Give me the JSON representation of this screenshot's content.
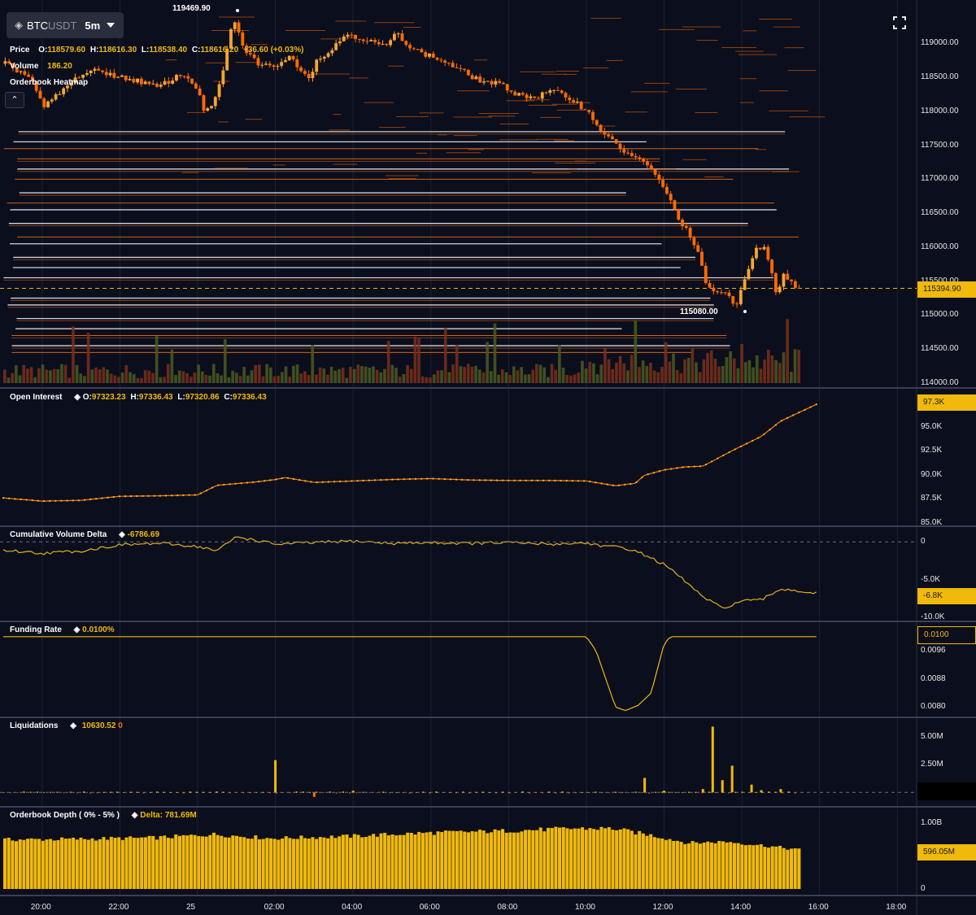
{
  "symbol": {
    "base": "BTC",
    "quote": "USDT",
    "timeframe": "5m"
  },
  "price_panel": {
    "label": "Price",
    "open_label": "O:",
    "open": "118579.60",
    "high_label": "H:",
    "high": "118616.30",
    "low_label": "L:",
    "low": "118538.40",
    "close_label": "C:",
    "close": "118616.20",
    "change": "+36.60 (+0.03%)",
    "volume_label": "Volume",
    "volume": "186.20",
    "heatmap_label": "Orderbook Heatmap",
    "high_marker": "119469.90",
    "low_marker": "115080.00",
    "last_price": "115394.90"
  },
  "open_interest": {
    "label": "Open Interest",
    "open_label": "O:",
    "open": "97323.23",
    "high_label": "H:",
    "high": "97336.43",
    "low_label": "L:",
    "low": "97320.86",
    "close_label": "C:",
    "close": "97336.43",
    "last": "97.3K"
  },
  "cvd": {
    "label": "Cumulative Volume Delta",
    "value": "-6786.69",
    "last": "-6.8K"
  },
  "funding": {
    "label": "Funding Rate",
    "value": "0.0100%",
    "last": "0.0100"
  },
  "liquidations": {
    "label": "Liquidations",
    "value1": "10630.52",
    "value2": "0"
  },
  "depth": {
    "label": "Orderbook Depth ( 0% - 5% )",
    "delta_label": "Delta: 781.69M",
    "last": "596.05M"
  },
  "colors": {
    "background": "#0b0e1c",
    "accent": "#f0b90b",
    "candle": "#ff8c1a",
    "grid": "#1c2233",
    "dashed": "#f0b90b"
  },
  "chart_data": [
    {
      "type": "candlestick",
      "title": "BTCUSDT 5m",
      "x_tick_labels": [
        "20:00",
        "22:00",
        "25",
        "02:00",
        "04:00",
        "06:00",
        "08:00",
        "10:00",
        "12:00",
        "14:00",
        "16:00",
        "18:00"
      ],
      "y_tick_labels": [
        "119000.00",
        "118500.00",
        "118000.00",
        "117500.00",
        "117000.00",
        "116500.00",
        "116000.00",
        "115500.00",
        "115000.00",
        "114500.00",
        "114000.00"
      ],
      "ylim": [
        114000,
        119470
      ],
      "close_path": [
        [
          "19:00",
          118700
        ],
        [
          "19:40",
          118500
        ],
        [
          "20:00",
          118050
        ],
        [
          "20:30",
          118300
        ],
        [
          "21:00",
          118550
        ],
        [
          "21:30",
          118600
        ],
        [
          "22:00",
          118500
        ],
        [
          "22:30",
          118450
        ],
        [
          "23:00",
          118350
        ],
        [
          "23:40",
          118550
        ],
        [
          "00:00",
          118400
        ],
        [
          "00:15",
          118000
        ],
        [
          "00:30",
          118100
        ],
        [
          "00:45",
          118600
        ],
        [
          "01:00",
          119400
        ],
        [
          "01:15",
          118950
        ],
        [
          "01:40",
          118700
        ],
        [
          "02:00",
          118650
        ],
        [
          "02:30",
          118800
        ],
        [
          "03:00",
          118500
        ],
        [
          "03:15",
          118800
        ],
        [
          "03:30",
          118850
        ],
        [
          "04:00",
          119150
        ],
        [
          "04:30",
          119050
        ],
        [
          "05:00",
          118950
        ],
        [
          "05:20",
          119150
        ],
        [
          "05:40",
          118950
        ],
        [
          "06:00",
          118850
        ],
        [
          "06:30",
          118750
        ],
        [
          "07:00",
          118600
        ],
        [
          "07:30",
          118450
        ],
        [
          "08:00",
          118400
        ],
        [
          "08:30",
          118250
        ],
        [
          "09:00",
          118200
        ],
        [
          "09:20",
          118300
        ],
        [
          "09:40",
          118250
        ],
        [
          "10:00",
          118150
        ],
        [
          "10:20",
          118000
        ],
        [
          "10:40",
          117750
        ],
        [
          "11:00",
          117550
        ],
        [
          "11:20",
          117400
        ],
        [
          "11:40",
          117300
        ],
        [
          "12:00",
          117150
        ],
        [
          "12:20",
          116900
        ],
        [
          "12:40",
          116500
        ],
        [
          "13:00",
          116200
        ],
        [
          "13:15",
          115900
        ],
        [
          "13:30",
          115400
        ],
        [
          "13:45",
          115350
        ],
        [
          "14:00",
          115300
        ],
        [
          "14:15",
          115100
        ],
        [
          "14:30",
          115600
        ],
        [
          "14:45",
          115950
        ],
        [
          "15:00",
          116000
        ],
        [
          "15:10",
          115650
        ],
        [
          "15:20",
          115300
        ],
        [
          "15:30",
          115600
        ],
        [
          "15:45",
          115450
        ],
        [
          "15:55",
          115394.9
        ]
      ],
      "heatmap_levels": [
        115250,
        115150,
        114950,
        114800,
        114700,
        114550,
        114450,
        115550,
        115700,
        115850,
        116050,
        116150,
        116350,
        116550,
        116650,
        116800,
        117000,
        117150,
        117300,
        117450,
        117550,
        117700
      ]
    },
    {
      "type": "line",
      "title": "Open Interest",
      "y_tick_labels": [
        "97.3K",
        "95.0K",
        "92.5K",
        "90.0K",
        "87.5K",
        "85.0K"
      ],
      "ylim": [
        84800,
        98200
      ],
      "points": [
        [
          "19:00",
          87580
        ],
        [
          "20:00",
          87250
        ],
        [
          "21:00",
          87330
        ],
        [
          "22:00",
          87750
        ],
        [
          "23:00",
          87800
        ],
        [
          "00:00",
          87900
        ],
        [
          "00:30",
          88900
        ],
        [
          "01:30",
          89250
        ],
        [
          "02:00",
          89500
        ],
        [
          "02:15",
          89700
        ],
        [
          "03:00",
          89200
        ],
        [
          "04:00",
          89350
        ],
        [
          "05:00",
          89500
        ],
        [
          "06:00",
          89600
        ],
        [
          "07:00",
          89450
        ],
        [
          "08:00",
          89400
        ],
        [
          "09:00",
          89400
        ],
        [
          "10:00",
          89350
        ],
        [
          "10:45",
          88850
        ],
        [
          "11:15",
          89100
        ],
        [
          "11:30",
          89950
        ],
        [
          "12:00",
          90500
        ],
        [
          "12:30",
          90800
        ],
        [
          "13:00",
          90900
        ],
        [
          "13:45",
          92500
        ],
        [
          "14:30",
          94000
        ],
        [
          "15:00",
          95600
        ],
        [
          "15:55",
          97336.43
        ]
      ]
    },
    {
      "type": "line",
      "title": "Cumulative Volume Delta",
      "y_tick_labels": [
        "0",
        "-5.0K",
        "-6.8K",
        "-10.0K"
      ],
      "ylim": [
        -10300,
        1100
      ],
      "points": [
        [
          "19:00",
          -1100
        ],
        [
          "20:00",
          -1500
        ],
        [
          "21:00",
          -1200
        ],
        [
          "22:00",
          -400
        ],
        [
          "23:00",
          -200
        ],
        [
          "00:00",
          -600
        ],
        [
          "00:30",
          -1200
        ],
        [
          "01:00",
          700
        ],
        [
          "01:30",
          200
        ],
        [
          "02:00",
          -300
        ],
        [
          "03:00",
          -100
        ],
        [
          "04:00",
          100
        ],
        [
          "05:00",
          -200
        ],
        [
          "06:00",
          -100
        ],
        [
          "07:00",
          -200
        ],
        [
          "08:00",
          -100
        ],
        [
          "09:00",
          -300
        ],
        [
          "10:00",
          -150
        ],
        [
          "10:30",
          -600
        ],
        [
          "11:00",
          -800
        ],
        [
          "11:30",
          -1700
        ],
        [
          "12:00",
          -3000
        ],
        [
          "12:30",
          -5000
        ],
        [
          "13:00",
          -7300
        ],
        [
          "13:30",
          -8800
        ],
        [
          "14:00",
          -7800
        ],
        [
          "14:30",
          -7700
        ],
        [
          "15:00",
          -6200
        ],
        [
          "15:55",
          -6786.69
        ]
      ]
    },
    {
      "type": "line",
      "title": "Funding Rate",
      "y_tick_labels": [
        "0.0100",
        "0.0096",
        "0.0088",
        "0.0080"
      ],
      "ylim": [
        0.0078,
        0.01025
      ],
      "points": [
        [
          "19:00",
          0.01
        ],
        [
          "10:00",
          0.01
        ],
        [
          "10:15",
          0.0096
        ],
        [
          "10:45",
          0.008
        ],
        [
          "11:00",
          0.0079
        ],
        [
          "11:20",
          0.00805
        ],
        [
          "11:40",
          0.0084
        ],
        [
          "12:00",
          0.0098
        ],
        [
          "12:10",
          0.01
        ],
        [
          "15:55",
          0.01
        ]
      ]
    },
    {
      "type": "bar",
      "title": "Liquidations",
      "y_tick_labels": [
        "5.00M",
        "2.50M"
      ],
      "ylim": [
        -1000000,
        6000000
      ],
      "bars": [
        [
          "02:00",
          2900000
        ],
        [
          "03:00",
          -400000
        ],
        [
          "04:00",
          150000
        ],
        [
          "11:30",
          1300000
        ],
        [
          "12:00",
          150000
        ],
        [
          "13:00",
          300000
        ],
        [
          "13:15",
          5900000
        ],
        [
          "13:30",
          1100000
        ],
        [
          "13:45",
          2400000
        ],
        [
          "14:15",
          700000
        ],
        [
          "14:30",
          200000
        ],
        [
          "15:00",
          300000
        ]
      ]
    },
    {
      "type": "bar",
      "title": "Orderbook Depth ( 0% - 5% )",
      "y_tick_labels": [
        "1.00B",
        "596.05M",
        "0"
      ],
      "ylim": [
        0,
        1150000000
      ],
      "levels": [
        [
          "19:00",
          750000000
        ],
        [
          "21:00",
          760000000
        ],
        [
          "23:00",
          780000000
        ],
        [
          "00:30",
          830000000
        ],
        [
          "02:00",
          770000000
        ],
        [
          "04:00",
          800000000
        ],
        [
          "06:00",
          850000000
        ],
        [
          "08:00",
          880000000
        ],
        [
          "10:00",
          920000000
        ],
        [
          "11:00",
          920000000
        ],
        [
          "12:00",
          820000000
        ],
        [
          "13:00",
          700000000
        ],
        [
          "14:00",
          720000000
        ],
        [
          "15:00",
          660000000
        ],
        [
          "15:55",
          596050000
        ]
      ]
    }
  ]
}
